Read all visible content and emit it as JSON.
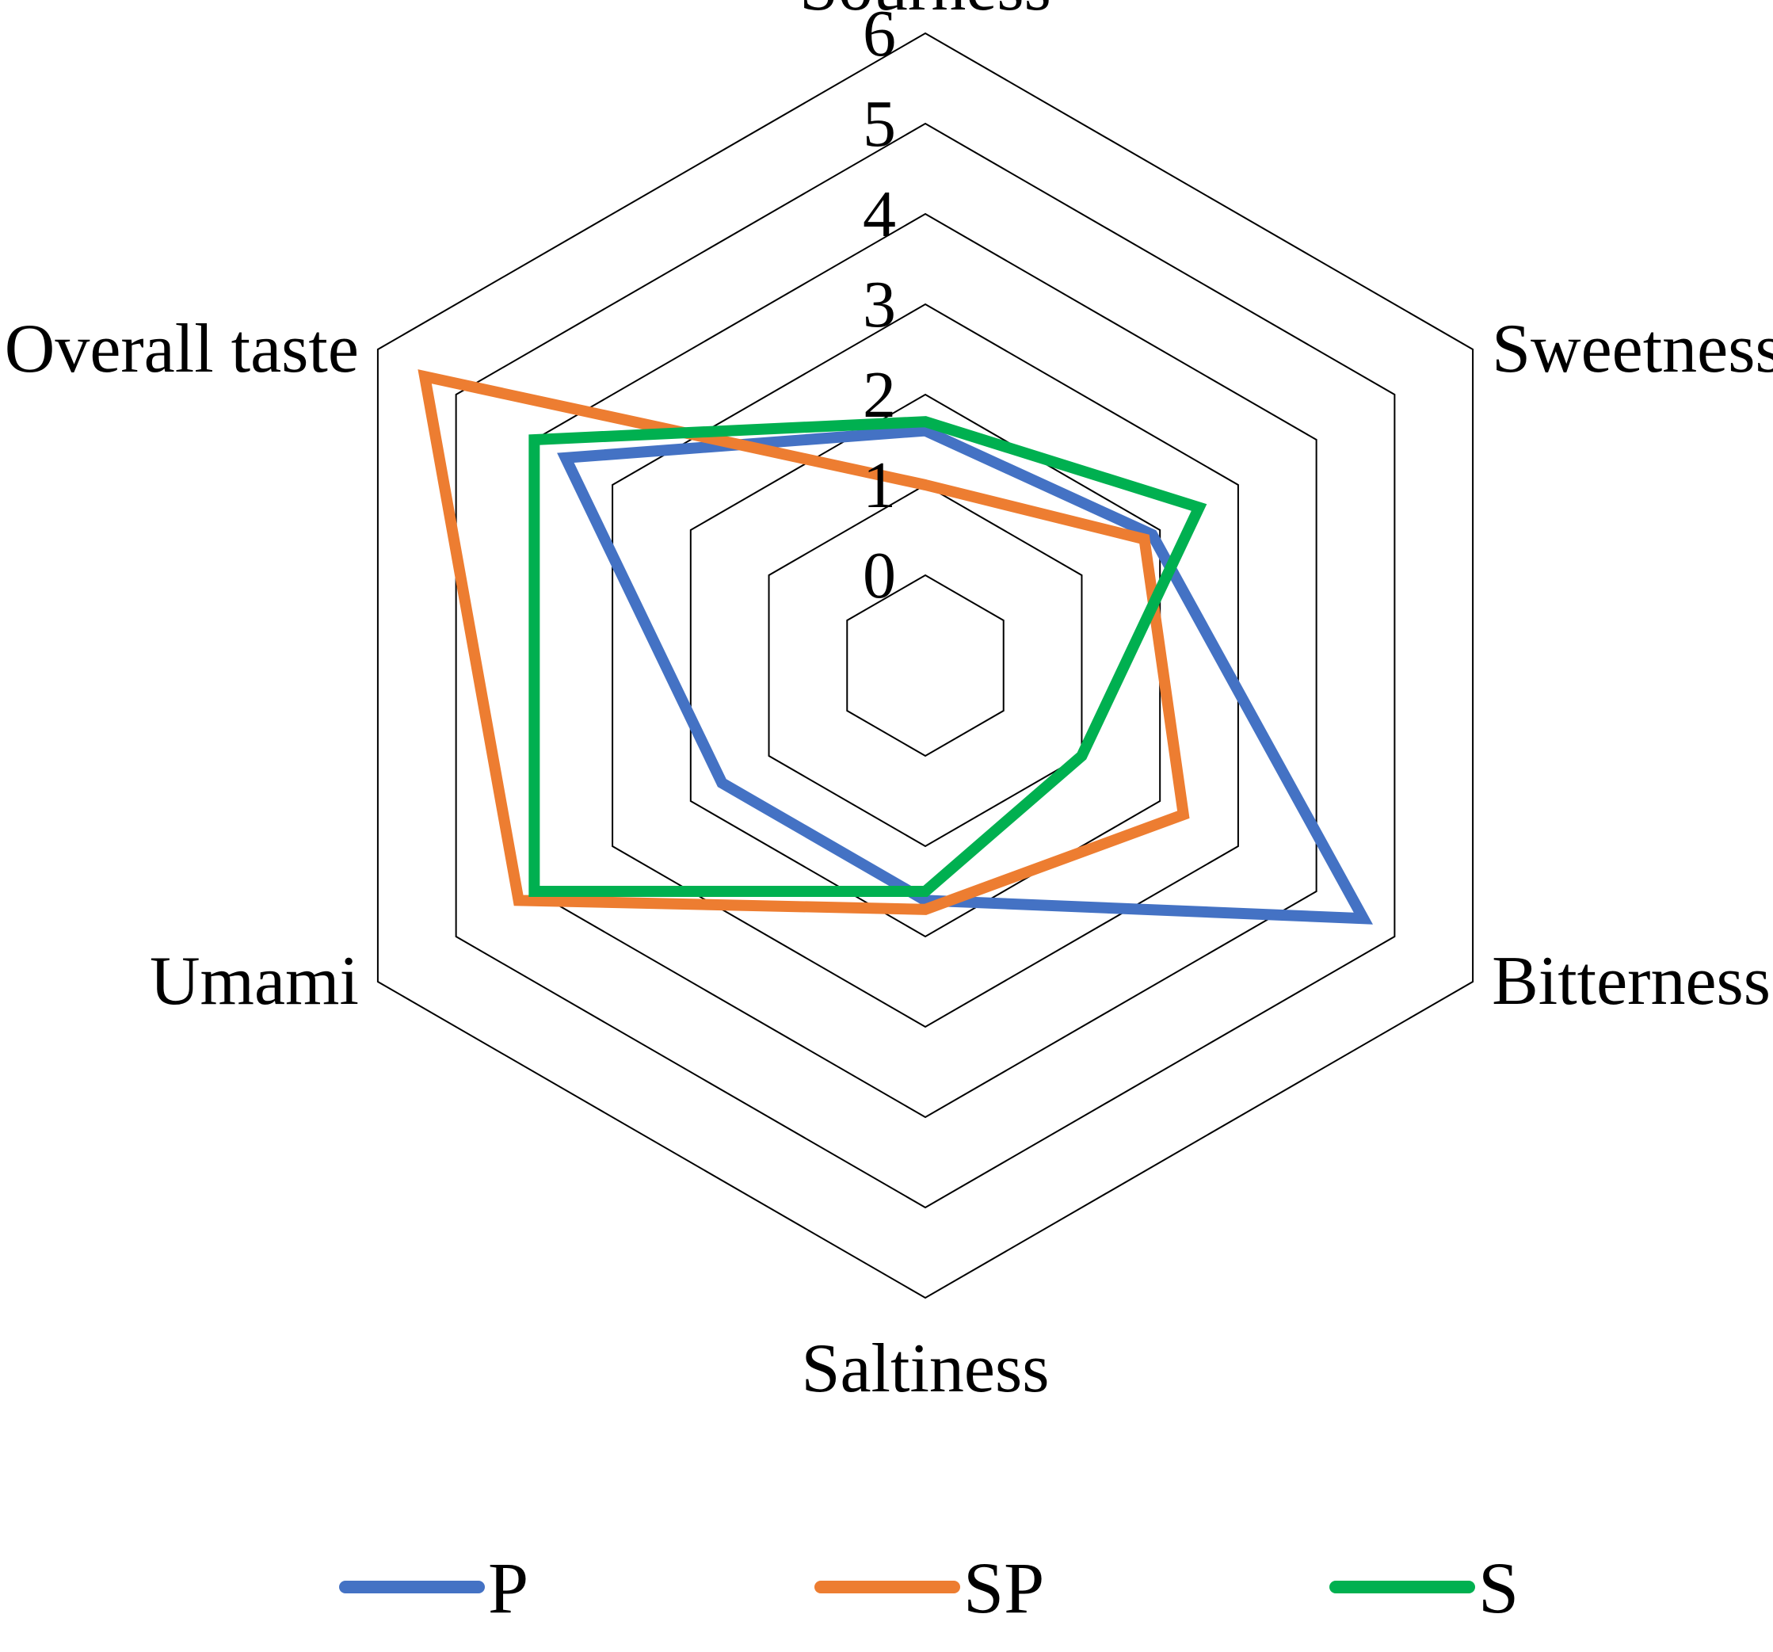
{
  "chart_data": {
    "type": "radar",
    "categories": [
      "Sourness",
      "Sweetness",
      "Bitterness",
      "Saltiness",
      "Umami",
      "Overall taste"
    ],
    "ticks": [
      "0",
      "1",
      "2",
      "3",
      "4",
      "5",
      "6"
    ],
    "rlim": [
      0,
      6
    ],
    "grid": true,
    "legend_position": "bottom",
    "series": [
      {
        "name": "P",
        "color": "#4472C4",
        "values": [
          1.6,
          1.9,
          4.6,
          1.6,
          1.6,
          3.6
        ]
      },
      {
        "name": "SP",
        "color": "#ED7D31",
        "values": [
          1.0,
          1.8,
          2.3,
          1.7,
          4.2,
          5.4
        ]
      },
      {
        "name": "S",
        "color": "#00B050",
        "values": [
          1.7,
          2.5,
          1.0,
          1.5,
          4.0,
          4.0
        ]
      }
    ]
  }
}
